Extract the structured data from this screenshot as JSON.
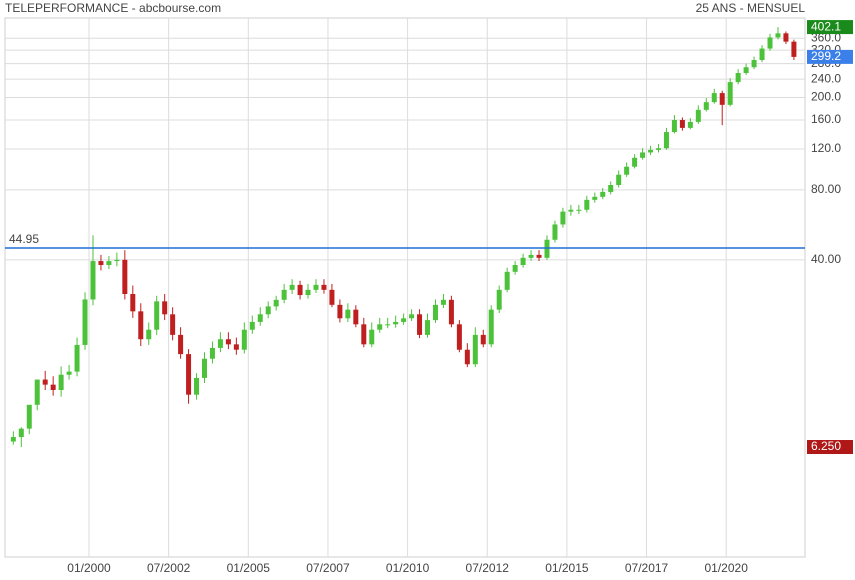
{
  "chart_data": {
    "type": "candlestick",
    "title": "TELEPERFORMANCE - abcbourse.com",
    "subtitle": "25 ANS - MENSUEL",
    "log_scale": true,
    "grid": true,
    "up_color": "#4cc23a",
    "down_color": "#c01f1f",
    "ylim": [
      2.1,
      440
    ],
    "yticks": [
      {
        "value": 40,
        "label": "40.00"
      },
      {
        "value": 80,
        "label": "80.00"
      },
      {
        "value": 120,
        "label": "120.0"
      },
      {
        "value": 160,
        "label": "160.0"
      },
      {
        "value": 200,
        "label": "200.0"
      },
      {
        "value": 240,
        "label": "240.0"
      },
      {
        "value": 280,
        "label": "280.0"
      },
      {
        "value": 320,
        "label": "320.0"
      },
      {
        "value": 360,
        "label": "360.0"
      }
    ],
    "xticks": [
      "01/2000",
      "07/2002",
      "01/2005",
      "07/2007",
      "01/2010",
      "07/2012",
      "01/2015",
      "07/2017",
      "01/2020"
    ],
    "reference_line": {
      "value": 44.95,
      "color": "#1e6fd9"
    },
    "price_labels": [
      {
        "value": 402.1,
        "color": "#1a8a1a"
      },
      {
        "value": 299.2,
        "color": "#3b7fe8"
      },
      {
        "value": 6.25,
        "label": "6.250",
        "color": "#b01818"
      }
    ],
    "x": [
      "07/1997",
      "10/1997",
      "01/1998",
      "04/1998",
      "07/1998",
      "10/1998",
      "01/1999",
      "04/1999",
      "07/1999",
      "10/1999",
      "01/2000",
      "04/2000",
      "07/2000",
      "10/2000",
      "01/2001",
      "04/2001",
      "07/2001",
      "10/2001",
      "01/2002",
      "04/2002",
      "07/2002",
      "10/2002",
      "01/2003",
      "04/2003",
      "07/2003",
      "10/2003",
      "01/2004",
      "04/2004",
      "07/2004",
      "10/2004",
      "01/2005",
      "04/2005",
      "07/2005",
      "10/2005",
      "01/2006",
      "04/2006",
      "07/2006",
      "10/2006",
      "01/2007",
      "04/2007",
      "07/2007",
      "10/2007",
      "01/2008",
      "04/2008",
      "07/2008",
      "10/2008",
      "01/2009",
      "04/2009",
      "07/2009",
      "10/2009",
      "01/2010",
      "04/2010",
      "07/2010",
      "10/2010",
      "01/2011",
      "04/2011",
      "07/2011",
      "10/2011",
      "01/2012",
      "04/2012",
      "07/2012",
      "10/2012",
      "01/2013",
      "04/2013",
      "07/2013",
      "10/2013",
      "01/2014",
      "04/2014",
      "07/2014",
      "10/2014",
      "01/2015",
      "04/2015",
      "07/2015",
      "10/2015",
      "01/2016",
      "04/2016",
      "07/2016",
      "10/2016",
      "01/2017",
      "04/2017",
      "07/2017",
      "10/2017",
      "01/2018",
      "04/2018",
      "07/2018",
      "10/2018",
      "01/2019",
      "04/2019",
      "07/2019",
      "10/2019",
      "01/2020",
      "04/2020",
      "07/2020",
      "10/2020",
      "01/2021",
      "04/2021",
      "07/2021",
      "10/2021",
      "01/2022"
    ],
    "open": [
      6.6,
      6.9,
      7.5,
      9.5,
      12.2,
      11.6,
      11,
      12.8,
      13.2,
      17.2,
      27,
      39.5,
      38,
      39.5,
      40,
      28.5,
      24,
      18.2,
      20,
      26.5,
      23.3,
      19,
      15.7,
      10.5,
      12.4,
      15,
      16.7,
      18.2,
      17.3,
      16.4,
      20,
      21.6,
      23.3,
      25.2,
      26.9,
      29.7,
      31.2,
      28.2,
      29.7,
      31.2,
      29.7,
      25.6,
      22.4,
      24.4,
      21.1,
      17.3,
      20,
      21.1,
      21.1,
      21.6,
      22.4,
      23.3,
      19,
      22,
      25.6,
      26.9,
      21.1,
      16.4,
      14.2,
      19,
      17.3,
      24.4,
      29.7,
      35.5,
      38,
      40.8,
      42,
      40.8,
      48.8,
      56.8,
      64.5,
      65.7,
      65.7,
      72.5,
      74.7,
      78.4,
      84,
      93,
      100.7,
      110,
      116,
      119,
      121,
      142,
      160,
      148,
      157,
      177,
      191,
      209,
      186,
      233,
      255,
      270,
      290,
      325,
      363,
      378,
      348
    ],
    "high": [
      7.3,
      7.6,
      8.2,
      10.4,
      13.3,
      12.6,
      13.9,
      14.1,
      18.5,
      29,
      51,
      42,
      41.5,
      43,
      44,
      31,
      26,
      21.5,
      28,
      28.5,
      25,
      20.5,
      16.5,
      13,
      16,
      17.8,
      19.5,
      19.5,
      18.5,
      21.5,
      23,
      25,
      26.5,
      28,
      31.5,
      33,
      32.5,
      31.5,
      33,
      33,
      31.5,
      27,
      26,
      25.5,
      22.5,
      21.5,
      22.5,
      22.5,
      23,
      23.5,
      24.5,
      24.5,
      23.5,
      27,
      28.5,
      28,
      22,
      17.5,
      20.5,
      20,
      25.5,
      31,
      37,
      39.5,
      42.5,
      44,
      44,
      51,
      59,
      67,
      69,
      69,
      75.5,
      78,
      81.5,
      87,
      97,
      105,
      114,
      121,
      124,
      126,
      148,
      168,
      164,
      163,
      185,
      199,
      218,
      214,
      242,
      265,
      280,
      300,
      336,
      376,
      402.1,
      385,
      355
    ],
    "low": [
      6.4,
      6.25,
      7.1,
      9,
      11,
      10.4,
      10.3,
      12.2,
      12.6,
      16.4,
      25.5,
      36,
      36.5,
      37.5,
      27,
      22.5,
      17,
      17.2,
      19,
      22,
      18,
      15,
      9.6,
      10,
      11.8,
      14.3,
      16,
      16.5,
      15.6,
      15.8,
      19.2,
      20.8,
      22.4,
      24.2,
      26,
      28.5,
      27,
      27.2,
      28.8,
      28.6,
      25,
      21.5,
      21.6,
      20.5,
      16.8,
      16.8,
      19.4,
      20.3,
      20.4,
      21,
      21.8,
      18.4,
      18.5,
      21.4,
      24.8,
      20.5,
      16,
      13.8,
      13.8,
      16.8,
      16.8,
      23.6,
      29,
      34.5,
      37,
      39.6,
      39.5,
      40,
      47.5,
      55,
      62,
      63,
      64,
      70.5,
      73,
      76.5,
      82,
      91,
      99,
      108,
      113,
      116,
      119,
      140,
      144,
      146,
      154,
      174,
      188,
      152,
      183,
      228,
      250,
      265,
      284,
      318,
      356,
      340,
      290
    ],
    "close": [
      6.9,
      7.5,
      9.5,
      12.2,
      11.6,
      11,
      12.8,
      13.2,
      17.2,
      27,
      39.5,
      38,
      39.5,
      40,
      28.5,
      24,
      18.2,
      20,
      26.5,
      23.3,
      19,
      15.7,
      10.5,
      12.4,
      15,
      16.7,
      18.2,
      17.3,
      16.4,
      20,
      21.6,
      23.3,
      25.2,
      26.9,
      29.7,
      31.2,
      28.2,
      29.7,
      31.2,
      29.7,
      25.6,
      22.4,
      24.4,
      21.1,
      17.3,
      20,
      21.1,
      21.1,
      21.6,
      22.4,
      23.3,
      19,
      22,
      25.6,
      26.9,
      21.1,
      16.4,
      14.2,
      19,
      17.3,
      24.4,
      29.7,
      35.5,
      38,
      40.8,
      42,
      40.8,
      48.8,
      56.8,
      64.5,
      65.7,
      65.7,
      72.5,
      74.7,
      78.4,
      84,
      93,
      100.7,
      110,
      116,
      119,
      121,
      142,
      160,
      148,
      157,
      177,
      191,
      209,
      186,
      233,
      255,
      270,
      290,
      325,
      363,
      378,
      348,
      299.2
    ]
  }
}
